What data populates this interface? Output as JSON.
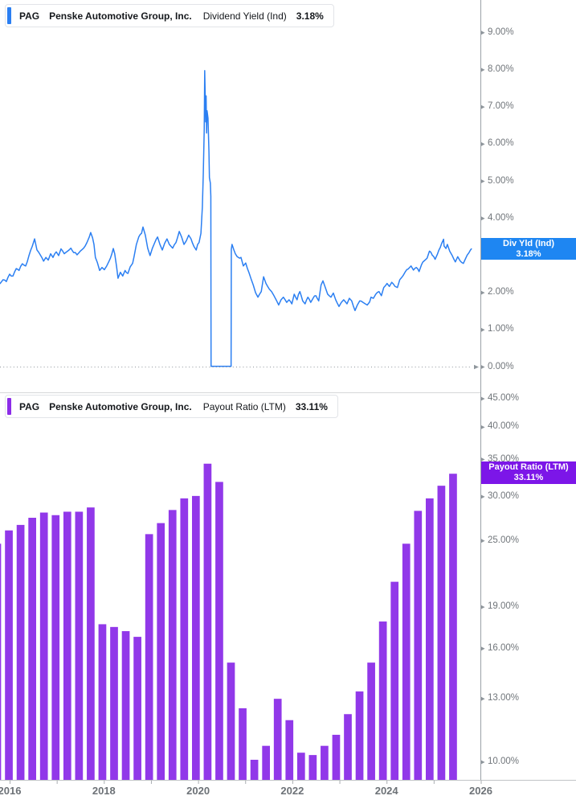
{
  "colors": {
    "blue_line": "#2b7ff2",
    "blue_label_bg": "#1e86f2",
    "legend_blue_bar": "#2b7ff2",
    "purple_bar": "#9138e9",
    "purple_label_bg": "#7c16e8",
    "legend_purple_bar": "#8c2ce8",
    "axis_line": "#9aa1a7",
    "grid_dotted": "#8f969c",
    "axis_text": "#70757a"
  },
  "top_chart": {
    "legend": {
      "ticker": "PAG",
      "company": "Penske Automotive Group, Inc.",
      "metric": "Dividend Yield (Ind)",
      "value": "3.18%"
    },
    "price_label": {
      "line1": "Div Yld (Ind)",
      "line2": "3.18%"
    },
    "y_ticks": [
      "9.00%",
      "8.00%",
      "7.00%",
      "6.00%",
      "5.00%",
      "4.00%",
      "3.00%",
      "2.00%",
      "1.00%",
      "0.00%"
    ]
  },
  "bottom_chart": {
    "legend": {
      "ticker": "PAG",
      "company": "Penske Automotive Group, Inc.",
      "metric": "Payout Ratio (LTM)",
      "value": "33.11%"
    },
    "price_label": {
      "line1": "Payout Ratio (LTM)",
      "line2": "33.11%"
    },
    "y_ticks": [
      "45.00%",
      "40.00%",
      "35.00%",
      "30.00%",
      "25.00%",
      "19.00%",
      "16.00%",
      "13.00%",
      "10.00%"
    ]
  },
  "x_axis": {
    "labels": [
      "2016",
      "2018",
      "2020",
      "2022",
      "2024",
      "2026"
    ]
  },
  "chart_data": [
    {
      "type": "line",
      "name": "Dividend Yield (Ind)",
      "ticker": "PAG",
      "unit": "%",
      "current": 3.18,
      "scale": "linear",
      "ylim": [
        0,
        9.5
      ],
      "x_range": [
        2015.8,
        2025.8
      ],
      "notes": "Dividend suspended (0%) from ~2020.28 to ~2020.70; spike to ~7.98% in early 2020",
      "points": [
        [
          2015.8,
          2.25
        ],
        [
          2015.86,
          2.35
        ],
        [
          2015.93,
          2.3
        ],
        [
          2016.0,
          2.5
        ],
        [
          2016.07,
          2.45
        ],
        [
          2016.14,
          2.65
        ],
        [
          2016.2,
          2.6
        ],
        [
          2016.27,
          2.78
        ],
        [
          2016.34,
          2.72
        ],
        [
          2016.41,
          3.0
        ],
        [
          2016.48,
          3.25
        ],
        [
          2016.53,
          3.45
        ],
        [
          2016.58,
          3.15
        ],
        [
          2016.65,
          3.02
        ],
        [
          2016.72,
          2.85
        ],
        [
          2016.77,
          2.95
        ],
        [
          2016.82,
          2.88
        ],
        [
          2016.87,
          3.05
        ],
        [
          2016.92,
          2.95
        ],
        [
          2016.99,
          3.1
        ],
        [
          2017.04,
          3.0
        ],
        [
          2017.09,
          3.18
        ],
        [
          2017.16,
          3.05
        ],
        [
          2017.23,
          3.12
        ],
        [
          2017.3,
          3.2
        ],
        [
          2017.36,
          3.08
        ],
        [
          2017.43,
          3.02
        ],
        [
          2017.5,
          3.12
        ],
        [
          2017.57,
          3.2
        ],
        [
          2017.64,
          3.35
        ],
        [
          2017.69,
          3.5
        ],
        [
          2017.72,
          3.62
        ],
        [
          2017.76,
          3.48
        ],
        [
          2017.79,
          3.3
        ],
        [
          2017.82,
          2.95
        ],
        [
          2017.86,
          2.82
        ],
        [
          2017.91,
          2.6
        ],
        [
          2017.96,
          2.68
        ],
        [
          2018.01,
          2.62
        ],
        [
          2018.06,
          2.72
        ],
        [
          2018.11,
          2.85
        ],
        [
          2018.17,
          3.05
        ],
        [
          2018.2,
          3.19
        ],
        [
          2018.23,
          3.05
        ],
        [
          2018.27,
          2.7
        ],
        [
          2018.3,
          2.39
        ],
        [
          2018.35,
          2.55
        ],
        [
          2018.4,
          2.45
        ],
        [
          2018.45,
          2.6
        ],
        [
          2018.51,
          2.52
        ],
        [
          2018.56,
          2.7
        ],
        [
          2018.61,
          2.79
        ],
        [
          2018.64,
          2.97
        ],
        [
          2018.69,
          3.3
        ],
        [
          2018.74,
          3.5
        ],
        [
          2018.8,
          3.6
        ],
        [
          2018.83,
          3.77
        ],
        [
          2018.88,
          3.55
        ],
        [
          2018.93,
          3.2
        ],
        [
          2018.98,
          3.0
        ],
        [
          2019.03,
          3.2
        ],
        [
          2019.08,
          3.35
        ],
        [
          2019.14,
          3.5
        ],
        [
          2019.19,
          3.3
        ],
        [
          2019.24,
          3.15
        ],
        [
          2019.29,
          3.33
        ],
        [
          2019.34,
          3.45
        ],
        [
          2019.39,
          3.3
        ],
        [
          2019.46,
          3.2
        ],
        [
          2019.53,
          3.35
        ],
        [
          2019.6,
          3.65
        ],
        [
          2019.65,
          3.5
        ],
        [
          2019.7,
          3.3
        ],
        [
          2019.75,
          3.4
        ],
        [
          2019.8,
          3.55
        ],
        [
          2019.85,
          3.45
        ],
        [
          2019.91,
          3.25
        ],
        [
          2019.96,
          3.15
        ],
        [
          2019.99,
          3.3
        ],
        [
          2020.02,
          3.35
        ],
        [
          2020.06,
          3.6
        ],
        [
          2020.09,
          4.3
        ],
        [
          2020.11,
          5.2
        ],
        [
          2020.13,
          6.4
        ],
        [
          2020.14,
          7.98
        ],
        [
          2020.15,
          7.35
        ],
        [
          2020.16,
          6.6
        ],
        [
          2020.17,
          7.3
        ],
        [
          2020.18,
          6.3
        ],
        [
          2020.19,
          6.9
        ],
        [
          2020.21,
          6.7
        ],
        [
          2020.23,
          5.8
        ],
        [
          2020.24,
          5.1
        ],
        [
          2020.26,
          4.95
        ],
        [
          2020.27,
          4.6
        ],
        [
          2020.275,
          0.02
        ],
        [
          2020.7,
          0.02
        ],
        [
          2020.705,
          3.17
        ],
        [
          2020.72,
          3.3
        ],
        [
          2020.76,
          3.15
        ],
        [
          2020.79,
          3.05
        ],
        [
          2020.83,
          2.97
        ],
        [
          2020.88,
          2.93
        ],
        [
          2020.91,
          2.95
        ],
        [
          2020.96,
          2.72
        ],
        [
          2021.01,
          2.8
        ],
        [
          2021.08,
          2.54
        ],
        [
          2021.13,
          2.35
        ],
        [
          2021.17,
          2.21
        ],
        [
          2021.22,
          2.0
        ],
        [
          2021.27,
          1.88
        ],
        [
          2021.3,
          1.95
        ],
        [
          2021.34,
          2.03
        ],
        [
          2021.39,
          2.43
        ],
        [
          2021.44,
          2.25
        ],
        [
          2021.51,
          2.1
        ],
        [
          2021.56,
          2.03
        ],
        [
          2021.61,
          1.92
        ],
        [
          2021.66,
          1.8
        ],
        [
          2021.71,
          1.67
        ],
        [
          2021.76,
          1.81
        ],
        [
          2021.81,
          1.88
        ],
        [
          2021.88,
          1.74
        ],
        [
          2021.93,
          1.81
        ],
        [
          2021.99,
          1.7
        ],
        [
          2022.04,
          1.96
        ],
        [
          2022.1,
          1.81
        ],
        [
          2022.16,
          2.03
        ],
        [
          2022.22,
          1.78
        ],
        [
          2022.27,
          1.7
        ],
        [
          2022.33,
          1.88
        ],
        [
          2022.39,
          1.74
        ],
        [
          2022.44,
          1.85
        ],
        [
          2022.5,
          1.92
        ],
        [
          2022.56,
          1.78
        ],
        [
          2022.61,
          2.21
        ],
        [
          2022.65,
          2.32
        ],
        [
          2022.7,
          2.14
        ],
        [
          2022.75,
          1.96
        ],
        [
          2022.82,
          1.88
        ],
        [
          2022.87,
          1.99
        ],
        [
          2022.92,
          1.81
        ],
        [
          2022.99,
          1.63
        ],
        [
          2023.04,
          1.74
        ],
        [
          2023.09,
          1.81
        ],
        [
          2023.16,
          1.7
        ],
        [
          2023.21,
          1.85
        ],
        [
          2023.26,
          1.78
        ],
        [
          2023.33,
          1.52
        ],
        [
          2023.38,
          1.67
        ],
        [
          2023.43,
          1.78
        ],
        [
          2023.5,
          1.74
        ],
        [
          2023.55,
          1.7
        ],
        [
          2023.59,
          1.67
        ],
        [
          2023.64,
          1.75
        ],
        [
          2023.67,
          1.88
        ],
        [
          2023.72,
          1.85
        ],
        [
          2023.77,
          1.96
        ],
        [
          2023.84,
          2.03
        ],
        [
          2023.89,
          1.92
        ],
        [
          2023.94,
          2.14
        ],
        [
          2024.01,
          2.25
        ],
        [
          2024.06,
          2.17
        ],
        [
          2024.11,
          2.28
        ],
        [
          2024.18,
          2.17
        ],
        [
          2024.23,
          2.14
        ],
        [
          2024.28,
          2.35
        ],
        [
          2024.35,
          2.46
        ],
        [
          2024.4,
          2.57
        ],
        [
          2024.46,
          2.64
        ],
        [
          2024.52,
          2.72
        ],
        [
          2024.57,
          2.61
        ],
        [
          2024.63,
          2.68
        ],
        [
          2024.69,
          2.57
        ],
        [
          2024.74,
          2.75
        ],
        [
          2024.8,
          2.86
        ],
        [
          2024.86,
          2.93
        ],
        [
          2024.91,
          3.12
        ],
        [
          2024.97,
          3.01
        ],
        [
          2025.03,
          2.9
        ],
        [
          2025.08,
          3.04
        ],
        [
          2025.14,
          3.22
        ],
        [
          2025.17,
          3.33
        ],
        [
          2025.21,
          3.44
        ],
        [
          2025.22,
          3.26
        ],
        [
          2025.26,
          3.19
        ],
        [
          2025.29,
          3.3
        ],
        [
          2025.34,
          3.12
        ],
        [
          2025.39,
          3.01
        ],
        [
          2025.43,
          2.9
        ],
        [
          2025.46,
          2.83
        ],
        [
          2025.51,
          2.97
        ],
        [
          2025.56,
          2.86
        ],
        [
          2025.63,
          2.79
        ],
        [
          2025.68,
          2.93
        ],
        [
          2025.71,
          3.01
        ],
        [
          2025.75,
          3.08
        ],
        [
          2025.78,
          3.15
        ],
        [
          2025.8,
          3.18
        ]
      ]
    },
    {
      "type": "bar",
      "name": "Payout Ratio (LTM)",
      "ticker": "PAG",
      "unit": "%",
      "current": 33.11,
      "scale": "log",
      "ylim": [
        9.3,
        47
      ],
      "categories": [
        "2015 Q3",
        "2015 Q4",
        "2016 Q1",
        "2016 Q2",
        "2016 Q3",
        "2016 Q4",
        "2017 Q1",
        "2017 Q2",
        "2017 Q3",
        "2017 Q4",
        "2018 Q1",
        "2018 Q2",
        "2018 Q3",
        "2018 Q4",
        "2019 Q1",
        "2019 Q2",
        "2019 Q3",
        "2019 Q4",
        "2020 Q1",
        "2020 Q2",
        "2020 Q3",
        "2020 Q4",
        "2021 Q1",
        "2021 Q2",
        "2021 Q3",
        "2021 Q4",
        "2022 Q1",
        "2022 Q2",
        "2022 Q3",
        "2022 Q4",
        "2023 Q1",
        "2023 Q2",
        "2023 Q3",
        "2023 Q4",
        "2024 Q1",
        "2024 Q2",
        "2024 Q3",
        "2024 Q4",
        "2025 Q1",
        "2025 Q2"
      ],
      "values": [
        24.7,
        26.1,
        26.7,
        27.5,
        28.1,
        27.8,
        28.2,
        28.2,
        28.7,
        17.7,
        17.5,
        17.2,
        16.8,
        25.7,
        26.9,
        28.4,
        29.8,
        30.1,
        34.4,
        31.9,
        15.1,
        12.5,
        10.1,
        10.7,
        13.0,
        11.9,
        10.4,
        10.3,
        10.7,
        11.2,
        12.2,
        13.4,
        15.1,
        17.9,
        21.1,
        24.7,
        28.3,
        29.8,
        31.4,
        33.0
      ]
    }
  ]
}
